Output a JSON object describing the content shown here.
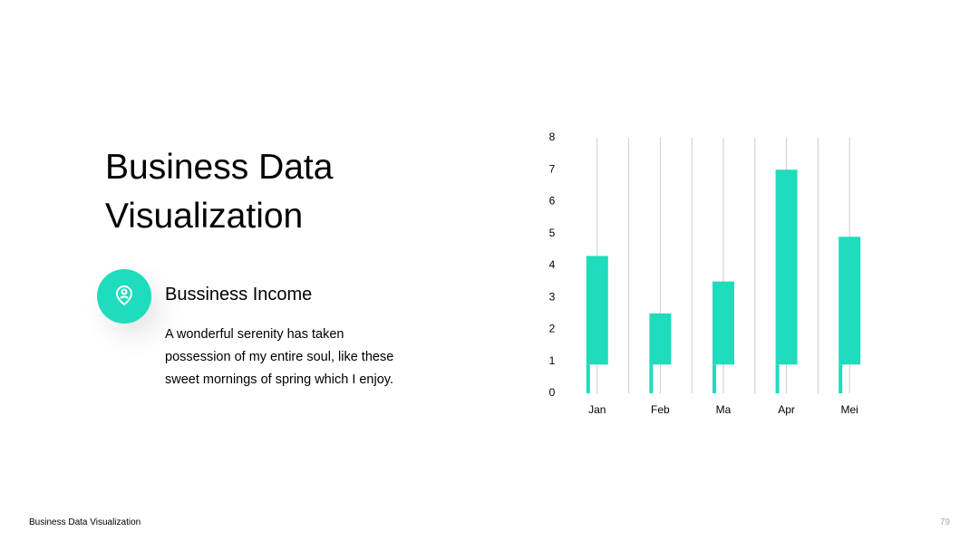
{
  "slide": {
    "title": "Business Data Visualization",
    "subtitle": "Bussiness Income",
    "body": "A wonderful serenity has taken possession of my entire soul, like these sweet mornings of spring which I enjoy.",
    "footer": "Business Data Visualization",
    "page_number": "79"
  },
  "chart_data": {
    "type": "floating-bar",
    "categories": [
      "Jan",
      "Feb",
      "Ma",
      "Apr",
      "Mei"
    ],
    "low": [
      0.9,
      0.9,
      0.9,
      0.9,
      0.9
    ],
    "high": [
      4.3,
      2.5,
      3.5,
      7,
      4.9
    ],
    "color": "#1fdcbc",
    "ylim": [
      0,
      8
    ],
    "yticks": [
      0,
      1,
      2,
      3,
      4,
      5,
      6,
      7,
      8
    ],
    "grid": true
  }
}
